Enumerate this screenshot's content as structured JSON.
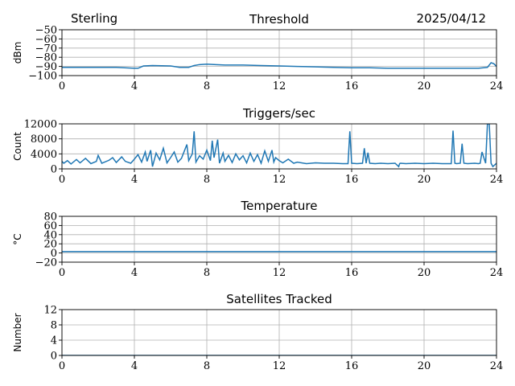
{
  "header": {
    "station": "Sterling",
    "date": "2025/04/12"
  },
  "colors": {
    "line": "#1f77b4",
    "grid": "#b0b0b0",
    "axis": "#000000"
  },
  "chart_data": [
    {
      "type": "line",
      "title": "Threshold",
      "ylabel": "dBm",
      "xlabel": "",
      "xlim": [
        0,
        24
      ],
      "ylim": [
        -100,
        -50
      ],
      "xticks": [
        0,
        4,
        8,
        12,
        16,
        20,
        24
      ],
      "yticks": [
        -100,
        -90,
        -80,
        -70,
        -60,
        -50
      ],
      "xtick_labels": [
        "0",
        "4",
        "8",
        "12",
        "16",
        "20",
        "24"
      ],
      "ytick_labels": [
        "−100",
        "−90",
        "−80",
        "−70",
        "−60",
        "−50"
      ],
      "grid": true,
      "x": [
        0,
        1,
        2,
        3,
        4,
        4.2,
        4.5,
        5,
        6,
        6.5,
        7,
        7.3,
        7.6,
        8,
        8.5,
        9,
        10,
        11,
        12,
        13,
        14,
        15,
        16,
        17,
        18,
        19,
        20,
        21,
        22,
        23,
        23.5,
        23.7,
        23.85,
        24
      ],
      "y": [
        -91,
        -91,
        -91,
        -91,
        -92,
        -92,
        -89.5,
        -89,
        -89.5,
        -91,
        -91,
        -89,
        -88,
        -87.5,
        -88,
        -88.5,
        -88.5,
        -89,
        -89.5,
        -90,
        -90.5,
        -91,
        -91.5,
        -91.5,
        -92,
        -92,
        -92,
        -92,
        -92,
        -92,
        -91,
        -86,
        -87,
        -90
      ]
    },
    {
      "type": "line",
      "title": "Triggers/sec",
      "ylabel": "Count",
      "xlabel": "",
      "xlim": [
        0,
        24
      ],
      "ylim": [
        0,
        12000
      ],
      "xticks": [
        0,
        4,
        8,
        12,
        16,
        20,
        24
      ],
      "yticks": [
        0,
        4000,
        8000,
        12000
      ],
      "xtick_labels": [
        "0",
        "4",
        "8",
        "12",
        "16",
        "20",
        "24"
      ],
      "ytick_labels": [
        "0",
        "4000",
        "8000",
        "12000"
      ],
      "grid": true,
      "x": [
        0,
        0.1,
        0.3,
        0.5,
        0.8,
        1.0,
        1.3,
        1.6,
        1.9,
        2.0,
        2.2,
        2.6,
        2.8,
        3.0,
        3.3,
        3.5,
        3.8,
        4.0,
        4.2,
        4.4,
        4.6,
        4.7,
        4.9,
        5.0,
        5.2,
        5.4,
        5.6,
        5.8,
        6.0,
        6.2,
        6.4,
        6.6,
        6.9,
        7.0,
        7.2,
        7.3,
        7.4,
        7.6,
        7.8,
        8.0,
        8.2,
        8.3,
        8.4,
        8.6,
        8.7,
        8.9,
        9.0,
        9.2,
        9.4,
        9.6,
        9.8,
        10.0,
        10.2,
        10.4,
        10.6,
        10.8,
        11.0,
        11.2,
        11.4,
        11.6,
        11.7,
        11.8,
        12.0,
        12.2,
        12.5,
        12.8,
        13.0,
        13.5,
        14.0,
        14.5,
        15.0,
        15.5,
        15.8,
        15.9,
        16.0,
        16.3,
        16.6,
        16.7,
        16.8,
        16.9,
        17.0,
        17.3,
        17.6,
        18.0,
        18.4,
        18.6,
        18.65,
        18.7,
        19.0,
        19.5,
        20.0,
        20.5,
        21.0,
        21.5,
        21.6,
        21.7,
        21.8,
        22.0,
        22.1,
        22.2,
        22.4,
        22.8,
        23.0,
        23.1,
        23.2,
        23.4,
        23.5,
        23.6,
        23.7,
        23.8,
        24.0
      ],
      "y": [
        2000,
        1500,
        2200,
        1300,
        2500,
        1600,
        2800,
        1400,
        2000,
        3600,
        1500,
        2300,
        3000,
        1700,
        3200,
        2000,
        1500,
        2600,
        3800,
        1800,
        4500,
        2000,
        5000,
        600,
        4200,
        2400,
        5500,
        1600,
        3000,
        4500,
        1800,
        2800,
        6500,
        2200,
        4000,
        10000,
        1800,
        3500,
        2600,
        5000,
        2200,
        7500,
        3000,
        7800,
        1500,
        4200,
        2000,
        3600,
        1700,
        4000,
        2400,
        3500,
        1600,
        4200,
        2000,
        3800,
        1500,
        4800,
        2000,
        5000,
        1800,
        3000,
        2200,
        1600,
        2600,
        1500,
        1800,
        1400,
        1600,
        1500,
        1500,
        1400,
        1400,
        10000,
        1500,
        1400,
        1500,
        5500,
        1500,
        4300,
        1500,
        1400,
        1500,
        1400,
        1500,
        600,
        1400,
        1500,
        1400,
        1500,
        1400,
        1500,
        1400,
        1400,
        10200,
        1500,
        1400,
        1500,
        6700,
        1500,
        1400,
        1500,
        1400,
        1500,
        4500,
        1500,
        12000,
        12000,
        1500,
        600,
        1500
      ]
    },
    {
      "type": "line",
      "title": "Temperature",
      "ylabel": "°C",
      "xlabel": "",
      "xlim": [
        0,
        24
      ],
      "ylim": [
        -20,
        80
      ],
      "xticks": [
        0,
        4,
        8,
        12,
        16,
        20,
        24
      ],
      "yticks": [
        -20,
        0,
        20,
        40,
        60,
        80
      ],
      "xtick_labels": [
        "0",
        "4",
        "8",
        "12",
        "16",
        "20",
        "24"
      ],
      "ytick_labels": [
        "−20",
        "0",
        "20",
        "40",
        "60",
        "80"
      ],
      "grid": true,
      "x": [
        0,
        24
      ],
      "y": [
        3,
        3
      ]
    },
    {
      "type": "line",
      "title": "Satellites Tracked",
      "ylabel": "Number",
      "xlabel": "",
      "xlim": [
        0,
        24
      ],
      "ylim": [
        0,
        12
      ],
      "xticks": [
        0,
        4,
        8,
        12,
        16,
        20,
        24
      ],
      "yticks": [
        0,
        4,
        8,
        12
      ],
      "xtick_labels": [
        "0",
        "4",
        "8",
        "12",
        "16",
        "20",
        "24"
      ],
      "ytick_labels": [
        "0",
        "4",
        "8",
        "12"
      ],
      "grid": true,
      "x": [
        0,
        24
      ],
      "y": [
        0,
        0
      ]
    }
  ]
}
